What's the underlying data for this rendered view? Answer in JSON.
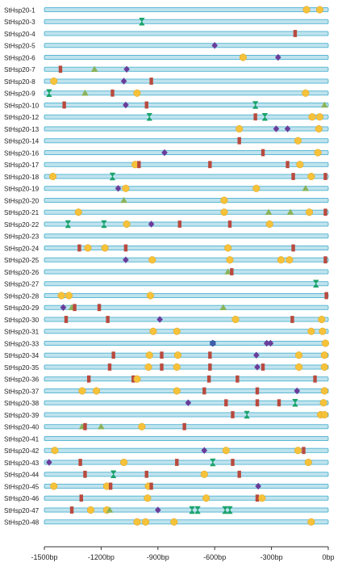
{
  "axis": {
    "min": -1500,
    "max": 0,
    "ticks": [
      {
        "value": -1500,
        "label": "-1500bp"
      },
      {
        "value": -1200,
        "label": "-1200bp"
      },
      {
        "value": -900,
        "label": "-900bp"
      },
      {
        "value": -600,
        "label": "-600bp"
      },
      {
        "value": -300,
        "label": "-300bp"
      },
      {
        "value": 0,
        "label": "0bp"
      }
    ]
  },
  "colors": {
    "bar_fill": "#bfe3ee",
    "bar_stroke": "#4fb3cf",
    "circle": "#f5c23a",
    "rect": "#b84a3e",
    "diamond": "#6a3d9a",
    "triangle": "#8ab35a",
    "hourglass": "#1aa36a",
    "hexagon": "#3f5fa8"
  },
  "motif_shapes": [
    "circle",
    "rect",
    "diamond",
    "triangle",
    "hourglass",
    "hexagon"
  ],
  "genes": [
    {
      "name": "StHsp20-1",
      "motifs": [
        [
          "circle",
          -115
        ],
        [
          "circle",
          -45
        ]
      ]
    },
    {
      "name": "StHsp20-3",
      "motifs": [
        [
          "hourglass",
          -985
        ]
      ]
    },
    {
      "name": "StHsp20-4",
      "motifs": [
        [
          "rect",
          -175
        ]
      ]
    },
    {
      "name": "StHsp20-5",
      "motifs": [
        [
          "diamond",
          -600
        ]
      ]
    },
    {
      "name": "StHsp20-6",
      "motifs": [
        [
          "circle",
          -450
        ],
        [
          "diamond",
          -265
        ]
      ]
    },
    {
      "name": "StHsp20-7",
      "motifs": [
        [
          "rect",
          -1415
        ],
        [
          "triangle",
          -1235
        ],
        [
          "diamond",
          -1065
        ]
      ]
    },
    {
      "name": "StHsp20-8",
      "motifs": [
        [
          "circle",
          -1450
        ],
        [
          "diamond",
          -1080
        ],
        [
          "rect",
          -935
        ]
      ]
    },
    {
      "name": "StHsp20-9",
      "motifs": [
        [
          "hourglass",
          -1475
        ],
        [
          "triangle",
          -1285
        ],
        [
          "rect",
          -1140
        ],
        [
          "circle",
          -1010
        ],
        [
          "circle",
          -120
        ]
      ]
    },
    {
      "name": "StHsp20-10",
      "motifs": [
        [
          "rect",
          -1395
        ],
        [
          "diamond",
          -1070
        ],
        [
          "rect",
          -960
        ],
        [
          "hourglass",
          -385
        ],
        [
          "triangle",
          -20
        ]
      ]
    },
    {
      "name": "StHsp20-12",
      "motifs": [
        [
          "hourglass",
          -945
        ],
        [
          "rect",
          -385
        ],
        [
          "hourglass",
          -335
        ],
        [
          "circle",
          -85
        ],
        [
          "circle",
          -45
        ]
      ]
    },
    {
      "name": "StHsp20-13",
      "motifs": [
        [
          "circle",
          -470
        ],
        [
          "diamond",
          -275
        ],
        [
          "diamond",
          -215
        ],
        [
          "circle",
          -50
        ]
      ]
    },
    {
      "name": "StHsp20-14",
      "motifs": [
        [
          "rect",
          -470
        ],
        [
          "circle",
          -160
        ]
      ]
    },
    {
      "name": "StHsp20-16",
      "motifs": [
        [
          "diamond",
          -865
        ],
        [
          "rect",
          -345
        ],
        [
          "circle",
          -55
        ]
      ]
    },
    {
      "name": "StHsp20-17",
      "motifs": [
        [
          "circle",
          -1020
        ],
        [
          "rect",
          -1000
        ],
        [
          "rect",
          -625
        ],
        [
          "rect",
          -215
        ],
        [
          "circle",
          -150
        ]
      ]
    },
    {
      "name": "StHsp20-18",
      "motifs": [
        [
          "circle",
          -1455
        ],
        [
          "hourglass",
          -1140
        ],
        [
          "rect",
          -185
        ],
        [
          "circle",
          -90
        ],
        [
          "rect",
          -15
        ]
      ]
    },
    {
      "name": "StHsp20-19",
      "motifs": [
        [
          "diamond",
          -1110
        ],
        [
          "circle",
          -1070
        ],
        [
          "circle",
          -380
        ],
        [
          "triangle",
          -120
        ]
      ]
    },
    {
      "name": "StHsp20-20",
      "motifs": [
        [
          "triangle",
          -1080
        ],
        [
          "circle",
          -550
        ]
      ]
    },
    {
      "name": "StHsp20-21",
      "motifs": [
        [
          "circle",
          -1320
        ],
        [
          "circle",
          -550
        ],
        [
          "triangle",
          -315
        ],
        [
          "triangle",
          -200
        ],
        [
          "circle",
          -100
        ],
        [
          "rect",
          -15
        ]
      ]
    },
    {
      "name": "StHsp20-22",
      "motifs": [
        [
          "hourglass",
          -1375
        ],
        [
          "hourglass",
          -1185
        ],
        [
          "circle",
          -1065
        ],
        [
          "diamond",
          -935
        ],
        [
          "rect",
          -785
        ],
        [
          "rect",
          -520
        ],
        [
          "circle",
          -310
        ]
      ]
    },
    {
      "name": "StHsp20-23",
      "motifs": []
    },
    {
      "name": "StHsp20-24",
      "motifs": [
        [
          "rect",
          -1315
        ],
        [
          "circle",
          -1270
        ],
        [
          "circle",
          -1180
        ],
        [
          "rect",
          -1070
        ],
        [
          "circle",
          -530
        ],
        [
          "rect",
          -185
        ]
      ]
    },
    {
      "name": "StHsp20-25",
      "motifs": [
        [
          "diamond",
          -1070
        ],
        [
          "circle",
          -930
        ],
        [
          "circle",
          -520
        ],
        [
          "circle",
          -250
        ],
        [
          "circle",
          -205
        ],
        [
          "rect",
          -15
        ]
      ]
    },
    {
      "name": "StHsp20-26",
      "motifs": [
        [
          "triangle",
          -530
        ],
        [
          "rect",
          -510
        ]
      ]
    },
    {
      "name": "StHsp20-27",
      "motifs": [
        [
          "hourglass",
          -65
        ]
      ]
    },
    {
      "name": "StHsp20-28",
      "motifs": [
        [
          "circle",
          -1410
        ],
        [
          "circle",
          -1370
        ],
        [
          "circle",
          -940
        ],
        [
          "rect",
          -10
        ]
      ]
    },
    {
      "name": "StHsp20-29",
      "motifs": [
        [
          "diamond",
          -1400
        ],
        [
          "triangle",
          -1355
        ],
        [
          "rect",
          -1340
        ],
        [
          "rect",
          -1210
        ],
        [
          "triangle",
          -555
        ]
      ]
    },
    {
      "name": "StHsp20-30",
      "motifs": [
        [
          "rect",
          -1385
        ],
        [
          "rect",
          -1165
        ],
        [
          "diamond",
          -890
        ],
        [
          "circle",
          -490
        ],
        [
          "rect",
          -190
        ],
        [
          "circle",
          -35
        ]
      ]
    },
    {
      "name": "StHsp20-31",
      "motifs": [
        [
          "circle",
          -925
        ],
        [
          "circle",
          -800
        ],
        [
          "circle",
          -90
        ],
        [
          "circle",
          -30
        ]
      ]
    },
    {
      "name": "StHsp20-33",
      "motifs": [
        [
          "hexagon",
          -610
        ],
        [
          "diamond",
          -325
        ],
        [
          "diamond",
          -305
        ],
        [
          "circle",
          -15
        ]
      ]
    },
    {
      "name": "StHsp20-34",
      "motifs": [
        [
          "rect",
          -1135
        ],
        [
          "circle",
          -945
        ],
        [
          "rect",
          -880
        ],
        [
          "circle",
          -795
        ],
        [
          "rect",
          -625
        ],
        [
          "diamond",
          -380
        ],
        [
          "circle",
          -155
        ],
        [
          "circle",
          -20
        ]
      ]
    },
    {
      "name": "StHsp20-35",
      "motifs": [
        [
          "rect",
          -1155
        ],
        [
          "circle",
          -950
        ],
        [
          "rect",
          -880
        ],
        [
          "circle",
          -800
        ],
        [
          "rect",
          -625
        ],
        [
          "diamond",
          -375
        ],
        [
          "rect",
          -345
        ],
        [
          "circle",
          -155
        ],
        [
          "circle",
          -20
        ]
      ]
    },
    {
      "name": "StHsp20-36",
      "motifs": [
        [
          "rect",
          -1265
        ],
        [
          "rect",
          -1030
        ],
        [
          "circle",
          -1010
        ],
        [
          "rect",
          -630
        ],
        [
          "rect",
          -480
        ],
        [
          "rect",
          -70
        ]
      ]
    },
    {
      "name": "StHsp20-37",
      "motifs": [
        [
          "circle",
          -1300
        ],
        [
          "circle",
          -1225
        ],
        [
          "circle",
          -800
        ],
        [
          "rect",
          -655
        ],
        [
          "rect",
          -375
        ],
        [
          "diamond",
          -165
        ],
        [
          "circle",
          -20
        ]
      ]
    },
    {
      "name": "StHsp20-38",
      "motifs": [
        [
          "diamond",
          -740
        ],
        [
          "rect",
          -540
        ],
        [
          "rect",
          -375
        ],
        [
          "rect",
          -260
        ],
        [
          "hourglass",
          -175
        ],
        [
          "circle",
          -25
        ]
      ]
    },
    {
      "name": "StHsp20-39",
      "motifs": [
        [
          "rect",
          -505
        ],
        [
          "hourglass",
          -430
        ],
        [
          "circle",
          -40
        ],
        [
          "circle",
          -20
        ]
      ]
    },
    {
      "name": "StHsp20-40",
      "motifs": [
        [
          "triangle",
          -1300
        ],
        [
          "rect",
          -1285
        ],
        [
          "triangle",
          -1200
        ],
        [
          "circle",
          -985
        ],
        [
          "rect",
          -760
        ]
      ]
    },
    {
      "name": "StHsp20-41",
      "motifs": []
    },
    {
      "name": "StHsp20-42",
      "motifs": [
        [
          "circle",
          -1445
        ],
        [
          "diamond",
          -655
        ],
        [
          "circle",
          -540
        ],
        [
          "circle",
          -160
        ],
        [
          "rect",
          -130
        ]
      ]
    },
    {
      "name": "StHsp20-43",
      "motifs": [
        [
          "diamond",
          -1475
        ],
        [
          "rect",
          -1310
        ],
        [
          "circle",
          -1080
        ],
        [
          "rect",
          -800
        ],
        [
          "hourglass",
          -610
        ],
        [
          "rect",
          -505
        ],
        [
          "circle",
          -105
        ]
      ]
    },
    {
      "name": "StHsp20-44",
      "motifs": [
        [
          "rect",
          -1285
        ],
        [
          "hourglass",
          -1135
        ],
        [
          "rect",
          -960
        ],
        [
          "circle",
          -655
        ],
        [
          "rect",
          -470
        ]
      ]
    },
    {
      "name": "StHsp20-45",
      "motifs": [
        [
          "circle",
          -1450
        ],
        [
          "circle",
          -1170
        ],
        [
          "rect",
          -1150
        ],
        [
          "circle",
          -950
        ],
        [
          "rect",
          -935
        ],
        [
          "diamond",
          -370
        ]
      ]
    },
    {
      "name": "StHsp20-46",
      "motifs": [
        [
          "rect",
          -1305
        ],
        [
          "circle",
          -955
        ],
        [
          "circle",
          -645
        ],
        [
          "rect",
          -375
        ],
        [
          "circle",
          -350
        ]
      ]
    },
    {
      "name": "StHsp20-47",
      "motifs": [
        [
          "rect",
          -1355
        ],
        [
          "circle",
          -1255
        ],
        [
          "circle",
          -1170
        ],
        [
          "triangle",
          -1155
        ],
        [
          "diamond",
          -900
        ],
        [
          "hourglass",
          -720
        ],
        [
          "hourglass",
          -690
        ],
        [
          "hourglass",
          -545
        ],
        [
          "hourglass",
          -520
        ]
      ]
    },
    {
      "name": "StHsp20-48",
      "motifs": [
        [
          "circle",
          -1010
        ],
        [
          "circle",
          -965
        ],
        [
          "circle",
          -815
        ],
        [
          "circle",
          -90
        ]
      ]
    }
  ]
}
